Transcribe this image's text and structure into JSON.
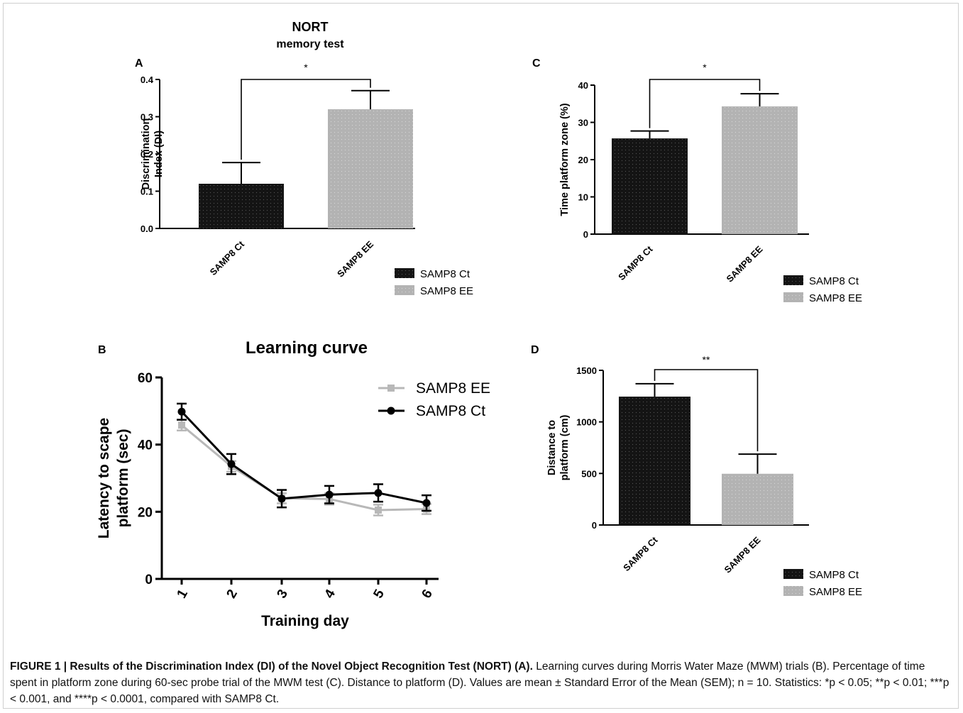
{
  "chart_data": [
    {
      "panel": "A",
      "type": "bar",
      "title": "NORT",
      "subtitle": "memory test",
      "ylabel_line1": "Discrimination",
      "ylabel_line2": "Index (DI)",
      "categories": [
        "SAMP8 Ct",
        "SAMP8 EE"
      ],
      "values": [
        0.12,
        0.32
      ],
      "errors": [
        0.057,
        0.05
      ],
      "ylim": [
        0,
        0.4
      ],
      "yticks": [
        "0.0",
        "0.1",
        "0.2",
        "0.3",
        "0.4"
      ],
      "significance": "*",
      "legend": [
        "SAMP8 Ct",
        "SAMP8 EE"
      ],
      "colors": [
        "#141414",
        "#b3b3b3"
      ]
    },
    {
      "panel": "C",
      "type": "bar",
      "ylabel": "Time platform zone (%)",
      "categories": [
        "SAMP8 Ct",
        "SAMP8 EE"
      ],
      "values": [
        25.7,
        34.3
      ],
      "errors": [
        2.0,
        3.4
      ],
      "ylim": [
        0,
        40
      ],
      "yticks": [
        "0",
        "10",
        "20",
        "30",
        "40"
      ],
      "significance": "*",
      "legend": [
        "SAMP8 Ct",
        "SAMP8 EE"
      ],
      "colors": [
        "#141414",
        "#b3b3b3"
      ]
    },
    {
      "panel": "B",
      "type": "line",
      "title": "Learning curve",
      "xlabel": "Training day",
      "ylabel_line1": "Latency to scape",
      "ylabel_line2": "platform (sec)",
      "x": [
        "1",
        "2",
        "3",
        "4",
        "5",
        "6"
      ],
      "ylim": [
        0,
        60
      ],
      "yticks": [
        "0",
        "20",
        "40",
        "60"
      ],
      "series": [
        {
          "name": "SAMP8 EE",
          "values": [
            45.8,
            33.5,
            24.0,
            23.8,
            20.5,
            20.8
          ],
          "errors": [
            1.6,
            1.6,
            1.5,
            1.7,
            1.6,
            1.5
          ],
          "color": "#b8b8b8",
          "marker": "square"
        },
        {
          "name": "SAMP8 Ct",
          "values": [
            49.8,
            34.2,
            23.9,
            25.1,
            25.6,
            22.6
          ],
          "errors": [
            2.4,
            3.0,
            2.6,
            2.6,
            2.6,
            2.3
          ],
          "color": "#000000",
          "marker": "circle"
        }
      ]
    },
    {
      "panel": "D",
      "type": "bar",
      "ylabel_line1": "Distance to",
      "ylabel_line2": "platform (cm)",
      "categories": [
        "SAMP8 Ct",
        "SAMP8 EE"
      ],
      "values": [
        1245,
        497
      ],
      "errors": [
        125,
        190
      ],
      "ylim": [
        0,
        1500
      ],
      "yticks": [
        "0",
        "500",
        "1000",
        "1500"
      ],
      "significance": "**",
      "legend": [
        "SAMP8 Ct",
        "SAMP8 EE"
      ],
      "colors": [
        "#141414",
        "#b3b3b3"
      ]
    }
  ],
  "caption": {
    "bold_lead": "FIGURE 1 | Results of the Discrimination Index (DI) of the Novel Object Recognition Test (NORT) (A).",
    "rest": " Learning curves during Morris Water Maze (MWM) trials (B). Percentage of time spent in platform zone during 60-sec probe trial of the MWM test (C). Distance to platform (D). Values are mean ± Standard Error of the Mean (SEM); n = 10. Statistics: *p < 0.05; **p < 0.01; ***p < 0.001, and ****p < 0.0001, compared with SAMP8 Ct."
  }
}
